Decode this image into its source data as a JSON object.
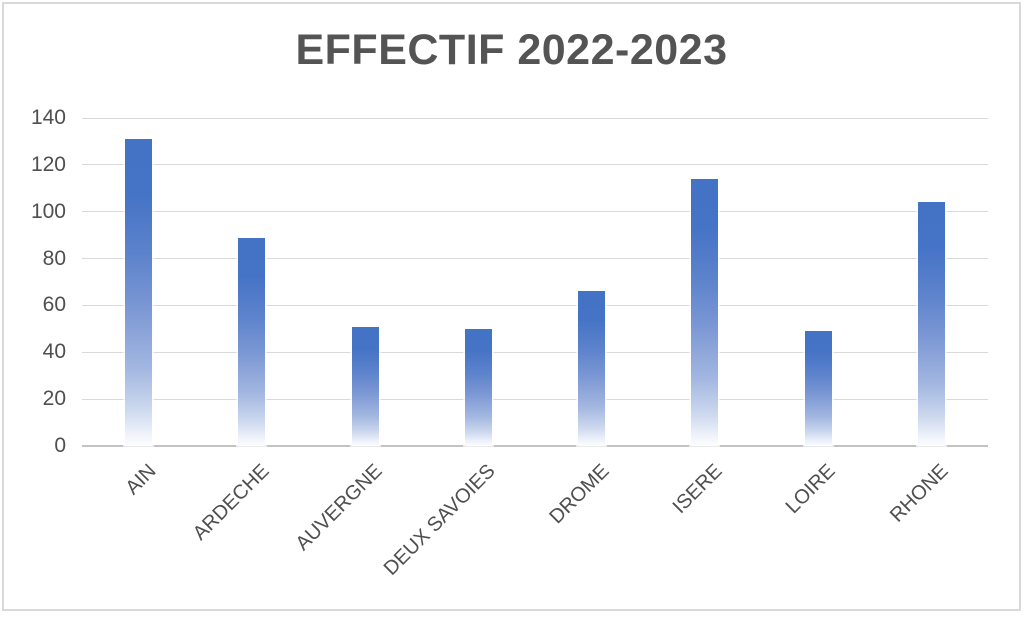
{
  "chart_data": {
    "type": "bar",
    "title": "EFFECTIF 2022-2023",
    "categories": [
      "AIN",
      "ARDECHE",
      "AUVERGNE",
      "DEUX SAVOIES",
      "DROME",
      "ISERE",
      "LOIRE",
      "RHONE"
    ],
    "values": [
      131,
      89,
      51,
      50,
      66,
      114,
      49,
      104
    ],
    "xlabel": "",
    "ylabel": "",
    "ylim": [
      0,
      140
    ],
    "ytick_step": 20,
    "yticks": [
      0,
      20,
      40,
      60,
      80,
      100,
      120,
      140
    ],
    "grid": true,
    "legend": false,
    "x_label_rotation_deg": 45,
    "colors": {
      "bar_top": "#4472c4",
      "bar_bottom": "#ffffff",
      "gridline": "#d9d9d9",
      "axis_line": "#c3c3c3",
      "tick_label": "#4f4f4f",
      "title": "#545454",
      "frame_border": "#d9d9d9",
      "background": "#ffffff"
    }
  }
}
